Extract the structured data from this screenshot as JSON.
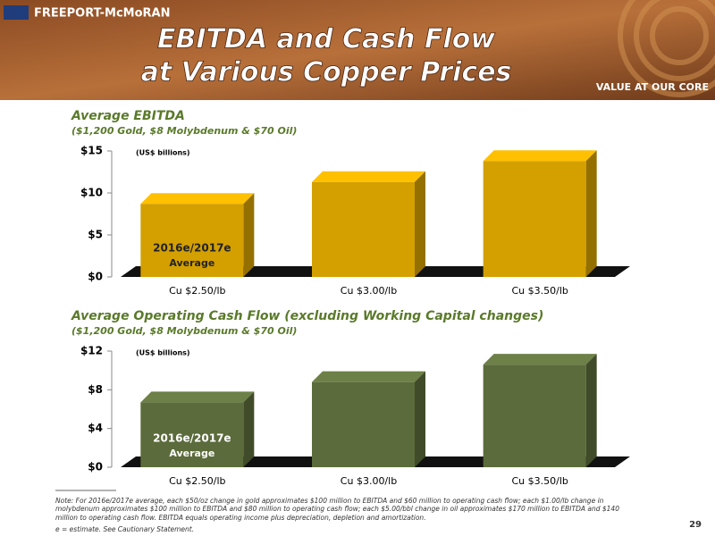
{
  "header": {
    "logo": "FREEPORT-McMoRAN",
    "title": [
      "EBITDA and Cash Flow",
      "at Various Copper Prices"
    ],
    "tagline": "VALUE AT OUR CORE"
  },
  "chart_data": [
    {
      "type": "bar",
      "title": "Average EBITDA",
      "subtitle": "($1,200 Gold, $8 Molybdenum & $70 Oil)",
      "unit_note": "(US$ billions)",
      "bar_annotation": [
        "2016e/2017e",
        "Average"
      ],
      "categories": [
        "Cu $2.50/lb",
        "Cu $3.00/lb",
        "Cu $3.50/lb"
      ],
      "values": [
        8.7,
        11.3,
        13.8
      ],
      "color": "#d4a000",
      "ylim": [
        0,
        15
      ],
      "yticks": [
        {
          "value": 0,
          "label": "$0"
        },
        {
          "value": 5,
          "label": "$5"
        },
        {
          "value": 10,
          "label": "$10"
        },
        {
          "value": 15,
          "label": "$15"
        }
      ]
    },
    {
      "type": "bar",
      "title": "Average Operating Cash Flow (excluding Working Capital changes)",
      "subtitle": "($1,200 Gold, $8 Molybdenum & $70 Oil)",
      "unit_note": "(US$ billions)",
      "bar_annotation": [
        "2016e/2017e",
        "Average"
      ],
      "categories": [
        "Cu $2.50/lb",
        "Cu $3.00/lb",
        "Cu $3.50/lb"
      ],
      "values": [
        6.7,
        8.8,
        10.6
      ],
      "color": "#5b6b3b",
      "ylim": [
        0,
        12
      ],
      "yticks": [
        {
          "value": 0,
          "label": "$0"
        },
        {
          "value": 4,
          "label": "$4"
        },
        {
          "value": 8,
          "label": "$8"
        },
        {
          "value": 12,
          "label": "$12"
        }
      ]
    }
  ],
  "note": "Note:  For 2016e/2017e average, each $50/oz change in gold approximates $100 million to EBITDA and $60 million to operating cash flow; each $1.00/lb change in molybdenum approximates $100 million to EBITDA and $80 million to operating cash flow; each $5.00/bbl change in oil approximates $170 million to EBITDA and $140 million to operating cash flow. EBITDA equals operating income plus depreciation, depletion and amortization.",
  "footnote": "e = estimate. See Cautionary Statement.",
  "page_number": "29"
}
